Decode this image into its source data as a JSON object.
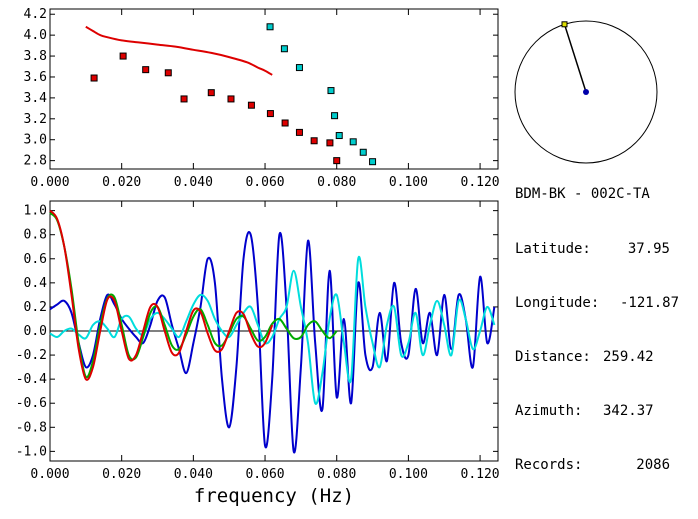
{
  "station": {
    "name": "BDM-BK - 002C-TA",
    "rows": [
      {
        "label": "Latitude:",
        "value": "37.95"
      },
      {
        "label": "Longitude:",
        "value": "-121.87"
      },
      {
        "label": "Distance:",
        "value": "259.42"
      },
      {
        "label": "Azimuth:",
        "value": "342.37"
      },
      {
        "label": "Records:",
        "value": "2086"
      }
    ]
  },
  "compass": {
    "azimuth_deg": 342.37
  },
  "chart_data": [
    {
      "type": "scatter",
      "xlim": [
        0.0,
        0.125
      ],
      "ylim": [
        2.72,
        4.25
      ],
      "xticks": [
        "0.000",
        "0.020",
        "0.040",
        "0.060",
        "0.080",
        "0.100",
        "0.120"
      ],
      "yticks": [
        "2.8",
        "3.0",
        "3.2",
        "3.4",
        "3.6",
        "3.8",
        "4.0",
        "4.2"
      ],
      "series": [
        {
          "color": "#dd0000",
          "kind": "markers",
          "x": [
            0.0123,
            0.0204,
            0.0267,
            0.033,
            0.0374,
            0.045,
            0.0505,
            0.0562,
            0.0615,
            0.0656,
            0.0696,
            0.0737,
            0.0781,
            0.08
          ],
          "y": [
            3.59,
            3.8,
            3.67,
            3.64,
            3.39,
            3.45,
            3.39,
            3.33,
            3.25,
            3.16,
            3.07,
            2.99,
            2.97,
            2.8
          ]
        },
        {
          "color": "#00cccc",
          "kind": "markers",
          "x": [
            0.0614,
            0.0654,
            0.0696,
            0.0784,
            0.0794,
            0.0807,
            0.0846,
            0.0874,
            0.09
          ],
          "y": [
            4.08,
            3.87,
            3.69,
            3.47,
            3.23,
            3.04,
            2.98,
            2.88,
            2.79
          ]
        },
        {
          "color": "#dd0000",
          "kind": "line",
          "x": [
            0.01,
            0.012,
            0.014,
            0.016,
            0.02,
            0.025,
            0.03,
            0.035,
            0.04,
            0.045,
            0.05,
            0.055,
            0.058,
            0.06,
            0.062
          ],
          "y": [
            4.08,
            4.04,
            4.0,
            3.98,
            3.95,
            3.93,
            3.91,
            3.89,
            3.86,
            3.83,
            3.79,
            3.74,
            3.69,
            3.66,
            3.62
          ]
        }
      ]
    },
    {
      "type": "line",
      "xlabel": "frequency (Hz)",
      "xlim": [
        0.0,
        0.125
      ],
      "ylim": [
        -1.08,
        1.08
      ],
      "xticks": [
        "0.000",
        "0.020",
        "0.040",
        "0.060",
        "0.080",
        "0.100",
        "0.120"
      ],
      "yticks": [
        "1.0",
        "0.8",
        "0.6",
        "0.4",
        "0.2",
        "0.0",
        "-0.2",
        "-0.4",
        "-0.6",
        "-0.8",
        "-1.0"
      ],
      "series": [
        {
          "color": "#0000cc",
          "x": [
            0.0,
            0.002,
            0.004,
            0.006,
            0.008,
            0.01,
            0.012,
            0.014,
            0.016,
            0.018,
            0.02,
            0.022,
            0.024,
            0.026,
            0.028,
            0.03,
            0.032,
            0.034,
            0.036,
            0.038,
            0.04,
            0.042,
            0.044,
            0.046,
            0.048,
            0.05,
            0.052,
            0.054,
            0.056,
            0.058,
            0.06,
            0.062,
            0.064,
            0.066,
            0.068,
            0.07,
            0.072,
            0.074,
            0.076,
            0.078,
            0.08,
            0.082,
            0.084,
            0.086,
            0.088,
            0.09,
            0.092,
            0.094,
            0.096,
            0.098,
            0.1,
            0.102,
            0.104,
            0.106,
            0.108,
            0.11,
            0.112,
            0.114,
            0.116,
            0.118,
            0.12,
            0.122,
            0.124
          ],
          "y": [
            0.18,
            0.22,
            0.25,
            0.15,
            -0.1,
            -0.3,
            -0.2,
            0.1,
            0.3,
            0.22,
            0.1,
            0.02,
            -0.05,
            -0.1,
            0.05,
            0.25,
            0.28,
            0.05,
            -0.15,
            -0.35,
            -0.1,
            0.2,
            0.6,
            0.4,
            -0.4,
            -0.8,
            -0.3,
            0.6,
            0.8,
            0.2,
            -0.95,
            -0.4,
            0.8,
            0.2,
            -1.0,
            -0.3,
            0.75,
            -0.1,
            -0.65,
            0.5,
            -0.55,
            0.1,
            -0.6,
            0.4,
            -0.2,
            -0.3,
            0.15,
            -0.25,
            0.4,
            -0.1,
            -0.2,
            0.35,
            -0.1,
            0.15,
            -0.2,
            0.3,
            -0.15,
            0.3,
            0.1,
            -0.3,
            0.45,
            -0.1,
            0.2
          ]
        },
        {
          "color": "#00dddd",
          "x": [
            0.0,
            0.002,
            0.004,
            0.006,
            0.008,
            0.01,
            0.012,
            0.014,
            0.016,
            0.018,
            0.02,
            0.022,
            0.024,
            0.026,
            0.028,
            0.03,
            0.032,
            0.034,
            0.036,
            0.038,
            0.04,
            0.042,
            0.044,
            0.046,
            0.048,
            0.05,
            0.052,
            0.054,
            0.056,
            0.058,
            0.06,
            0.062,
            0.064,
            0.066,
            0.068,
            0.07,
            0.072,
            0.074,
            0.076,
            0.078,
            0.08,
            0.082,
            0.084,
            0.086,
            0.088,
            0.09,
            0.092,
            0.094,
            0.096,
            0.098,
            0.1,
            0.102,
            0.104,
            0.106,
            0.108,
            0.11,
            0.112,
            0.114,
            0.116,
            0.118,
            0.12,
            0.122,
            0.124
          ],
          "y": [
            -0.02,
            -0.05,
            0.0,
            0.02,
            -0.03,
            -0.06,
            0.05,
            0.08,
            0.02,
            -0.05,
            0.1,
            0.12,
            0.02,
            -0.03,
            0.1,
            0.15,
            0.1,
            0.02,
            -0.05,
            0.08,
            0.22,
            0.3,
            0.25,
            0.1,
            0.0,
            -0.05,
            0.05,
            0.15,
            0.2,
            0.05,
            -0.1,
            -0.05,
            0.1,
            0.2,
            0.5,
            0.2,
            -0.1,
            -0.6,
            -0.35,
            0.1,
            0.3,
            -0.1,
            -0.4,
            0.6,
            0.2,
            -0.1,
            -0.3,
            0.05,
            0.2,
            -0.2,
            -0.1,
            0.15,
            -0.2,
            0.05,
            0.25,
            0.05,
            -0.2,
            0.25,
            0.1,
            -0.15,
            0.0,
            0.2,
            0.05
          ]
        },
        {
          "color": "#00aa00",
          "x": [
            0.0,
            0.002,
            0.004,
            0.006,
            0.008,
            0.01,
            0.012,
            0.014,
            0.016,
            0.018,
            0.02,
            0.022,
            0.024,
            0.026,
            0.028,
            0.03,
            0.032,
            0.034,
            0.036,
            0.038,
            0.04,
            0.042,
            0.044,
            0.046,
            0.048,
            0.05,
            0.052,
            0.054,
            0.056,
            0.058,
            0.06,
            0.062,
            0.064,
            0.066,
            0.068,
            0.07,
            0.072,
            0.074,
            0.076,
            0.078,
            0.08
          ],
          "y": [
            0.98,
            0.92,
            0.7,
            0.35,
            -0.1,
            -0.38,
            -0.25,
            0.05,
            0.27,
            0.28,
            0.05,
            -0.2,
            -0.22,
            -0.05,
            0.15,
            0.2,
            0.05,
            -0.12,
            -0.15,
            -0.03,
            0.12,
            0.18,
            0.05,
            -0.1,
            -0.12,
            -0.02,
            0.1,
            0.12,
            0.02,
            -0.08,
            -0.05,
            0.06,
            0.1,
            0.02,
            -0.06,
            -0.05,
            0.05,
            0.08,
            0.0,
            -0.06,
            0.0
          ]
        },
        {
          "color": "#dd0000",
          "x": [
            0.0,
            0.002,
            0.004,
            0.006,
            0.008,
            0.01,
            0.012,
            0.014,
            0.016,
            0.018,
            0.02,
            0.022,
            0.024,
            0.026,
            0.028,
            0.03,
            0.032,
            0.034,
            0.036,
            0.038,
            0.04,
            0.042,
            0.044,
            0.046,
            0.048,
            0.05,
            0.052,
            0.054,
            0.056,
            0.058,
            0.06,
            0.062
          ],
          "y": [
            1.0,
            0.93,
            0.7,
            0.3,
            -0.15,
            -0.4,
            -0.3,
            0.0,
            0.26,
            0.25,
            0.0,
            -0.23,
            -0.2,
            0.0,
            0.2,
            0.2,
            0.0,
            -0.18,
            -0.18,
            0.0,
            0.17,
            0.16,
            -0.02,
            -0.16,
            -0.15,
            0.0,
            0.15,
            0.14,
            -0.02,
            -0.13,
            -0.1,
            0.05
          ]
        }
      ]
    }
  ]
}
